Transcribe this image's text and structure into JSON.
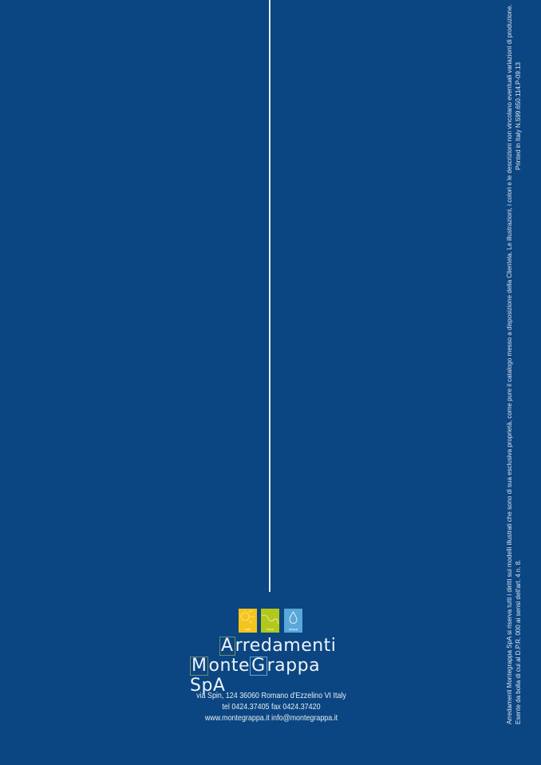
{
  "logo": {
    "icons": [
      {
        "label": "sole",
        "icon": "sun-icon",
        "color": "#f5c51c"
      },
      {
        "label": "terra",
        "icon": "land-icon",
        "color": "#b3c81a"
      },
      {
        "label": "acqua",
        "icon": "water-drop-icon",
        "color": "#5aa7d9"
      }
    ],
    "line1_initial": "A",
    "line1_rest": "rredamenti",
    "line2_part1_initial": "M",
    "line2_part1_rest": "onte",
    "line2_part2_initial": "G",
    "line2_part2_rest": "rappa SpA"
  },
  "address": {
    "street": "via Spin, 124 36060 Romano d'Ezzelino VI Italy",
    "phone": "tel 0424.37405 fax 0424.37420",
    "web": "www.montegrappa.it info@montegrappa.it"
  },
  "legal": {
    "rights": "Arredamenti Montegrappa SpA si riserva tutti i diritti sui modelli illustrati che sono di sua esclusiva proprietà, come pure il catalogo messo a disposizione della Clientela. Le illustrazioni, i colori e le descrizioni non vincolano eventuali variazioni di produzione.",
    "exemption": "Esente da bolla di cui al D.P.R. 000 ai sensi dell'art. 4 n. 8.",
    "printed": "Printed in Italy N.599.650.114.P-09.13"
  },
  "colors": {
    "background": "#0b4682",
    "text": "#ffffff"
  }
}
